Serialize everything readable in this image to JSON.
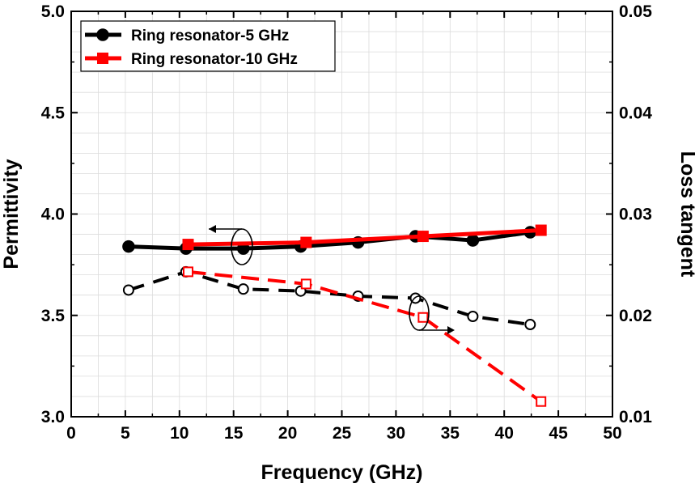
{
  "chart_data": {
    "type": "line",
    "xlabel": "Frequency (GHz)",
    "ylabel": "Permittivity",
    "y2label": "Loss tangent",
    "xlim": [
      0,
      50
    ],
    "ylim": [
      3.0,
      5.0
    ],
    "y2lim": [
      0.01,
      0.05
    ],
    "xticks": [
      "0",
      "5",
      "10",
      "15",
      "20",
      "25",
      "30",
      "35",
      "40",
      "45",
      "50"
    ],
    "yticks": [
      "3.0",
      "3.5",
      "4.0",
      "4.5",
      "5.0"
    ],
    "y2ticks": [
      "0.01",
      "0.02",
      "0.03",
      "0.04",
      "0.05"
    ],
    "grid": true,
    "legend": {
      "position": "top-left",
      "entries": [
        "Ring resonator-5 GHz",
        "Ring resonator-10 GHz"
      ]
    },
    "series": [
      {
        "name": "Ring resonator-5 GHz",
        "quantity": "permittivity",
        "axis": "left",
        "color": "#000000",
        "marker": "filled-circle",
        "x": [
          5.3,
          10.6,
          15.9,
          21.2,
          26.5,
          31.8,
          37.1,
          42.4
        ],
        "values": [
          3.84,
          3.83,
          3.83,
          3.84,
          3.86,
          3.89,
          3.87,
          3.91
        ]
      },
      {
        "name": "Ring resonator-10 GHz",
        "quantity": "permittivity",
        "axis": "left",
        "color": "#ff0000",
        "marker": "filled-square",
        "x": [
          10.8,
          21.7,
          32.5,
          43.4
        ],
        "values": [
          3.85,
          3.86,
          3.89,
          3.92
        ]
      },
      {
        "name": "Ring resonator-5 GHz",
        "quantity": "loss tangent",
        "axis": "right",
        "color": "#000000",
        "marker": "open-circle",
        "x": [
          5.3,
          10.6,
          15.9,
          21.2,
          26.5,
          31.8,
          37.1,
          42.4
        ],
        "values": [
          0.0225,
          0.0243,
          0.0226,
          0.0224,
          0.0219,
          0.0217,
          0.0199,
          0.0191
        ]
      },
      {
        "name": "Ring resonator-10 GHz",
        "quantity": "loss tangent",
        "axis": "right",
        "color": "#ff0000",
        "marker": "open-square",
        "x": [
          10.8,
          21.7,
          32.5,
          43.4
        ],
        "values": [
          0.0243,
          0.0231,
          0.0198,
          0.0115
        ]
      }
    ]
  }
}
